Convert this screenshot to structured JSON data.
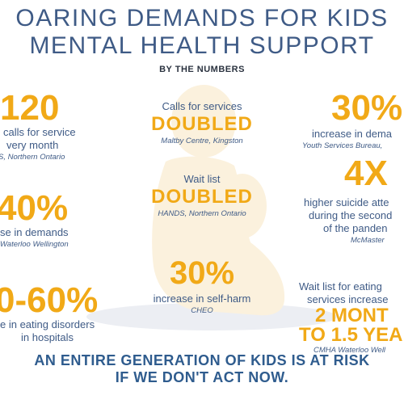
{
  "title": {
    "line1": "OARING DEMANDS FOR KIDS",
    "line2": "MENTAL HEALTH SUPPORT"
  },
  "subtitle": "BY THE NUMBERS",
  "stats": {
    "left1": {
      "big": "120",
      "line1": "calls for service",
      "line2": "very month",
      "source": "S, Northern Ontario"
    },
    "left2": {
      "big": "40%",
      "line1": "se in demands",
      "source": "Waterloo Wellington"
    },
    "left3": {
      "big": "0-60%",
      "line1": "e in eating disorders",
      "line2": "in hospitals"
    },
    "center1": {
      "label": "Calls for services",
      "big": "DOUBLED",
      "source": "Maltby Centre, Kingston"
    },
    "center2": {
      "label": "Wait list",
      "big": "DOUBLED",
      "source": "HANDS, Northern Ontario"
    },
    "center3": {
      "big": "30%",
      "line1": "increase in self-harm",
      "source": "CHEO"
    },
    "right1": {
      "big": "30%",
      "line1": "increase in dema",
      "source": "Youth Services Bureau,"
    },
    "right2": {
      "big": "4X",
      "line1": "higher suicide atte",
      "line2": "during the second",
      "line3": "of the panden",
      "source": "McMaster"
    },
    "right3": {
      "line1": "Wait list for eating",
      "line2": "services increase",
      "big1": "2 MONT",
      "big2": "TO 1.5 YEA",
      "source": "CMHA Waterloo Well"
    }
  },
  "footer": {
    "line1": "AN ENTIRE GENERATION OF KIDS IS AT RISK",
    "line2": "IF WE DON'T ACT NOW."
  },
  "colors": {
    "accent": "#f1a917",
    "primary": "#3f5b86",
    "silhouette": "#fbf1dd",
    "shadow": "#eceef3"
  }
}
